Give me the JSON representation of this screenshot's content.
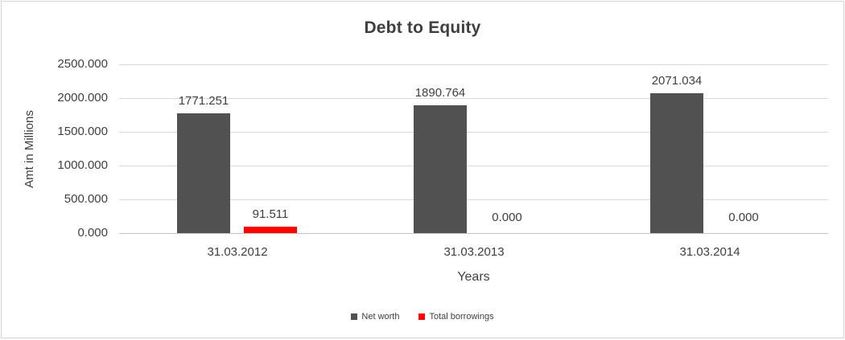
{
  "chart_data": {
    "type": "bar",
    "title": "Debt to Equity",
    "xlabel": "Years",
    "ylabel": "Amt in Millions",
    "categories": [
      "31.03.2012",
      "31.03.2013",
      "31.03.2014"
    ],
    "series": [
      {
        "name": "Net worth",
        "color": "#515151",
        "values": [
          1771.251,
          1890.764,
          2071.034
        ],
        "labels": [
          "1771.251",
          "1890.764",
          "2071.034"
        ]
      },
      {
        "name": "Total borrowings",
        "color": "#ff0000",
        "values": [
          91.511,
          0,
          0
        ],
        "labels": [
          "91.511",
          "0.000",
          "0.000"
        ]
      }
    ],
    "ylim": [
      0,
      2500
    ],
    "yticks": [
      0,
      500,
      1000,
      1500,
      2000,
      2500
    ],
    "ytick_labels": [
      "0.000",
      "500.000",
      "1000.000",
      "1500.000",
      "2000.000",
      "2500.000"
    ],
    "grid": true,
    "legend_position": "bottom"
  },
  "colors": {
    "gridline": "#d9d9d9",
    "axis_line": "#c3c3c3",
    "text": "#404040",
    "background": "#ffffff",
    "frame_border": "#d5d5d5"
  }
}
